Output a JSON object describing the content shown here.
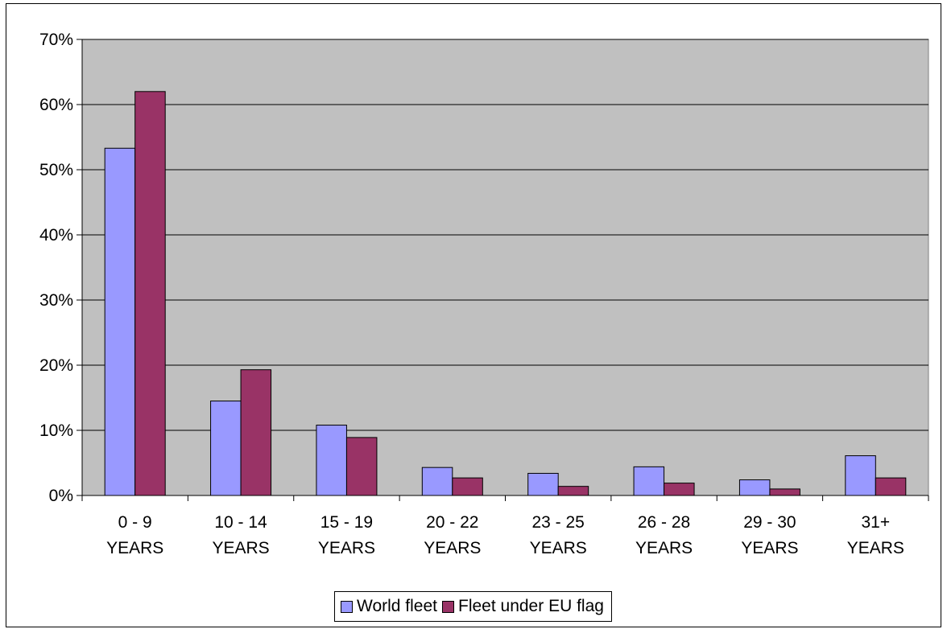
{
  "chart_data": {
    "type": "bar",
    "title": "",
    "xlabel": "",
    "ylabel": "",
    "categories": [
      [
        "0 - 9",
        "YEARS"
      ],
      [
        "10 - 14",
        "YEARS"
      ],
      [
        "15 - 19",
        "YEARS"
      ],
      [
        "20 - 22",
        "YEARS"
      ],
      [
        "23 - 25",
        "YEARS"
      ],
      [
        "26 - 28",
        "YEARS"
      ],
      [
        "29 - 30",
        "YEARS"
      ],
      [
        "31+",
        "YEARS"
      ]
    ],
    "series": [
      {
        "name": "World fleet",
        "color": "#9999ff",
        "values": [
          53.3,
          14.5,
          10.8,
          4.3,
          3.4,
          4.4,
          2.4,
          6.1
        ]
      },
      {
        "name": "Fleet under EU flag",
        "color": "#993366",
        "values": [
          62.0,
          19.3,
          8.9,
          2.7,
          1.4,
          1.9,
          1.0,
          2.7
        ]
      }
    ],
    "ylim": [
      0,
      70
    ],
    "yticks": [
      0,
      10,
      20,
      30,
      40,
      50,
      60,
      70
    ],
    "ytick_format": "%",
    "grid": true,
    "plot_background": "#c0c0c0",
    "legend": "bottom-center"
  }
}
